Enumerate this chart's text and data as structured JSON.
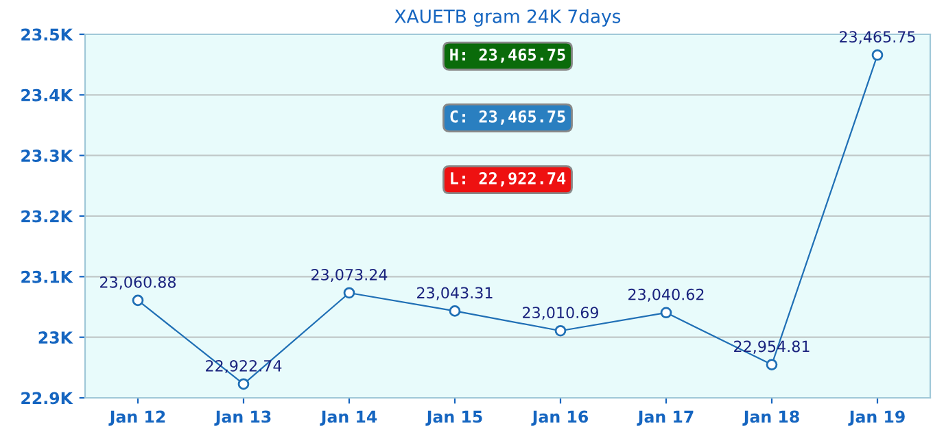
{
  "chart_data": {
    "type": "line",
    "title": "XAUETB gram 24K 7days",
    "categories": [
      "Jan 12",
      "Jan 13",
      "Jan 14",
      "Jan 15",
      "Jan 16",
      "Jan 17",
      "Jan 18",
      "Jan 19"
    ],
    "series": [
      {
        "color": "#1f6fb5",
        "values": [
          23060.88,
          22922.74,
          23073.24,
          23043.31,
          23010.69,
          23040.62,
          22954.81,
          23465.75
        ],
        "value_labels": [
          "23,060.88",
          "22,922.74",
          "23,073.24",
          "23,043.31",
          "23,010.69",
          "23,040.62",
          "22,954.81",
          "23,465.75"
        ]
      }
    ],
    "ylim": [
      22900,
      23500
    ],
    "yticks": [
      {
        "value": 22900,
        "label": "22.9K"
      },
      {
        "value": 23000,
        "label": "23K"
      },
      {
        "value": 23100,
        "label": "23.1K"
      },
      {
        "value": 23200,
        "label": "23.2K"
      },
      {
        "value": 23300,
        "label": "23.3K"
      },
      {
        "value": 23400,
        "label": "23.4K"
      },
      {
        "value": 23500,
        "label": "23.5K"
      }
    ],
    "grid": "y",
    "marker": "circle",
    "line_style": "solid",
    "legend": false,
    "annotations": [
      "H: 23,465.75",
      "C: 23,465.75",
      "L: 22,922.74"
    ]
  }
}
